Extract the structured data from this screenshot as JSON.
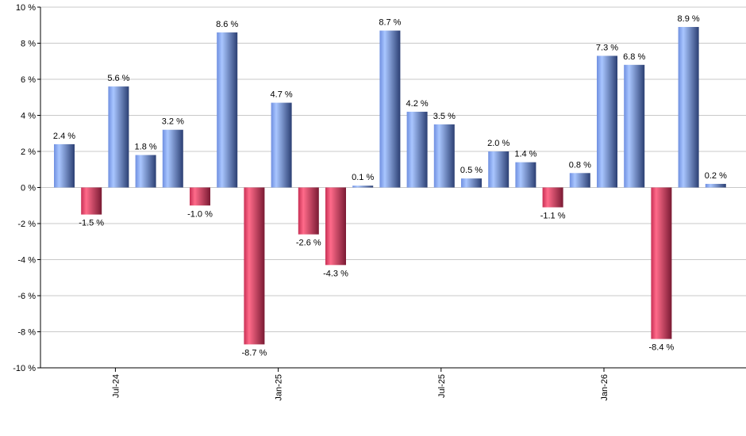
{
  "chart_data": {
    "type": "bar",
    "title": "",
    "xlabel": "",
    "ylabel": "",
    "ylim": [
      -10,
      10
    ],
    "ytick_step": 2,
    "ytick_suffix": " %",
    "grid": true,
    "legend": "none",
    "colors": {
      "positive_light": "#a9c6ff",
      "positive_dark": "#2b3f73",
      "negative_light": "#ff6b8a",
      "negative_dark": "#7a1a33",
      "grid": "#c8c8c8",
      "axis": "#000000"
    },
    "x_tick_labels": [
      {
        "label": "Jul-24",
        "index": 2
      },
      {
        "label": "Jan-25",
        "index": 8
      },
      {
        "label": "Jul-25",
        "index": 14
      },
      {
        "label": "Jan-26",
        "index": 20
      }
    ],
    "values": [
      2.4,
      -1.5,
      5.6,
      1.8,
      3.2,
      -1.0,
      8.6,
      -8.7,
      4.7,
      -2.6,
      -4.3,
      0.1,
      8.7,
      4.2,
      3.5,
      0.5,
      2.0,
      1.4,
      -1.1,
      0.8,
      7.3,
      6.8,
      -8.4,
      8.9,
      0.2
    ],
    "data_labels": [
      "2.4 %",
      "-1.5 %",
      "5.6 %",
      "1.8 %",
      "3.2 %",
      "-1.0 %",
      "8.6 %",
      "-8.7 %",
      "4.7 %",
      "-2.6 %",
      "-4.3 %",
      "0.1 %",
      "8.7 %",
      "4.2 %",
      "3.5 %",
      "0.5 %",
      "2.0 %",
      "1.4 %",
      "-1.1 %",
      "0.8 %",
      "7.3 %",
      "6.8 %",
      "-8.4 %",
      "8.9 %",
      "0.2 %"
    ]
  }
}
